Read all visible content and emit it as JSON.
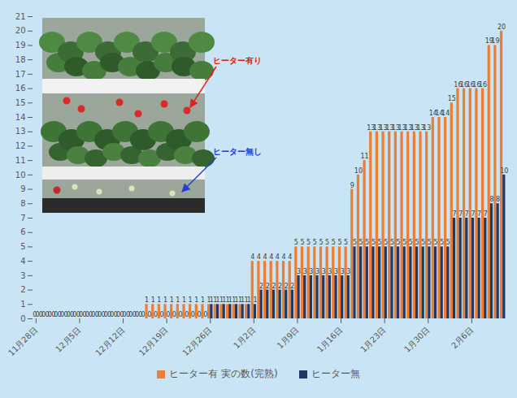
{
  "chart_data": {
    "type": "bar",
    "categories": [
      "11月28日",
      null,
      null,
      null,
      null,
      null,
      null,
      "12月5日",
      null,
      null,
      null,
      null,
      null,
      null,
      "12月12日",
      null,
      null,
      null,
      null,
      null,
      null,
      "12月19日",
      null,
      null,
      null,
      null,
      null,
      null,
      "12月26日",
      null,
      null,
      null,
      null,
      null,
      null,
      "1月2日",
      null,
      null,
      null,
      null,
      null,
      null,
      "1月9日",
      null,
      null,
      null,
      null,
      null,
      null,
      "1月16日",
      null,
      null,
      null,
      null,
      null,
      null,
      "1月23日",
      null,
      null,
      null,
      null,
      null,
      null,
      "1月30日",
      null,
      null,
      null,
      null,
      null,
      null,
      "2月6日",
      null,
      null,
      null,
      null,
      null
    ],
    "series": [
      {
        "name": "ヒーター有 実の数(完熟)",
        "color": "#ed7d31",
        "values": [
          0,
          0,
          0,
          0,
          0,
          0,
          0,
          0,
          0,
          0,
          0,
          0,
          0,
          0,
          0,
          0,
          0,
          0,
          1,
          1,
          1,
          1,
          1,
          1,
          1,
          1,
          1,
          1,
          1,
          1,
          1,
          1,
          1,
          1,
          1,
          4,
          4,
          4,
          4,
          4,
          4,
          4,
          5,
          5,
          5,
          5,
          5,
          5,
          5,
          5,
          5,
          9,
          10,
          11,
          13,
          13,
          13,
          13,
          13,
          13,
          13,
          13,
          13,
          13,
          14,
          14,
          14,
          15,
          16,
          16,
          16,
          16,
          16,
          19,
          19,
          20
        ]
      },
      {
        "name": "ヒーター無",
        "color": "#1f3864",
        "values": [
          0,
          0,
          0,
          0,
          0,
          0,
          0,
          0,
          0,
          0,
          0,
          0,
          0,
          0,
          0,
          0,
          0,
          0,
          0,
          0,
          0,
          0,
          0,
          0,
          0,
          0,
          0,
          0,
          1,
          1,
          1,
          1,
          1,
          1,
          1,
          1,
          2,
          2,
          2,
          2,
          2,
          2,
          3,
          3,
          3,
          3,
          3,
          3,
          3,
          3,
          3,
          5,
          5,
          5,
          5,
          5,
          5,
          5,
          5,
          5,
          5,
          5,
          5,
          5,
          5,
          5,
          5,
          7,
          7,
          7,
          7,
          7,
          7,
          8,
          8,
          10
        ]
      }
    ],
    "ylim": [
      0,
      21
    ],
    "yticks": [
      0,
      1,
      2,
      3,
      4,
      5,
      6,
      7,
      8,
      9,
      10,
      11,
      12,
      13,
      14,
      15,
      16,
      17,
      18,
      19,
      20,
      21
    ],
    "grid": false,
    "data_labels": true,
    "legend": "bottom",
    "annotations": [
      {
        "text": "ヒーター有り",
        "color": "#e02020"
      },
      {
        "text": "ヒーター無し",
        "color": "#2040d0"
      }
    ]
  }
}
